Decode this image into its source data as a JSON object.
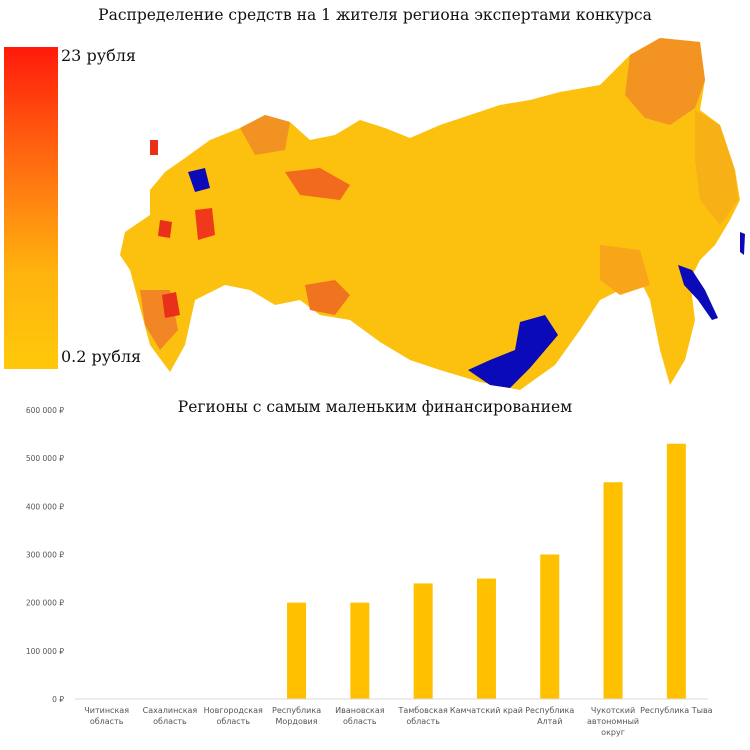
{
  "map": {
    "title": "Распределение средств на 1 жителя региона экспертами конкурса",
    "legend_max": "23 рубля",
    "legend_min": "0.2 рубля",
    "colors": {
      "high": "#ff1a0a",
      "mid": "#ff8c1a",
      "low": "#ffc90a",
      "highlight": "#0a0ab8"
    }
  },
  "chart_data": {
    "type": "bar",
    "title": "Регионы с самым маленьким финансированием",
    "categories": [
      [
        "Читинская",
        "область"
      ],
      [
        "Сахалинская",
        "область"
      ],
      [
        "Новгородская",
        "область"
      ],
      [
        "Республика",
        "Мордовия"
      ],
      [
        "Ивановская",
        "область"
      ],
      [
        "Тамбовская",
        "область"
      ],
      [
        "Камчатский край"
      ],
      [
        "Республика",
        "Алтай"
      ],
      [
        "Чукотский",
        "автономный",
        "округ"
      ],
      [
        "Республика Тыва"
      ]
    ],
    "values": [
      0,
      0,
      0,
      200000,
      200000,
      240000,
      250000,
      300000,
      450000,
      530000
    ],
    "ylim": [
      0,
      600000
    ],
    "yticks": [
      "0 ₽",
      "100 000 ₽",
      "200 000 ₽",
      "300 000 ₽",
      "400 000 ₽",
      "500 000 ₽",
      "600 000 ₽"
    ],
    "bar_color": "#ffc000",
    "grid": false
  }
}
